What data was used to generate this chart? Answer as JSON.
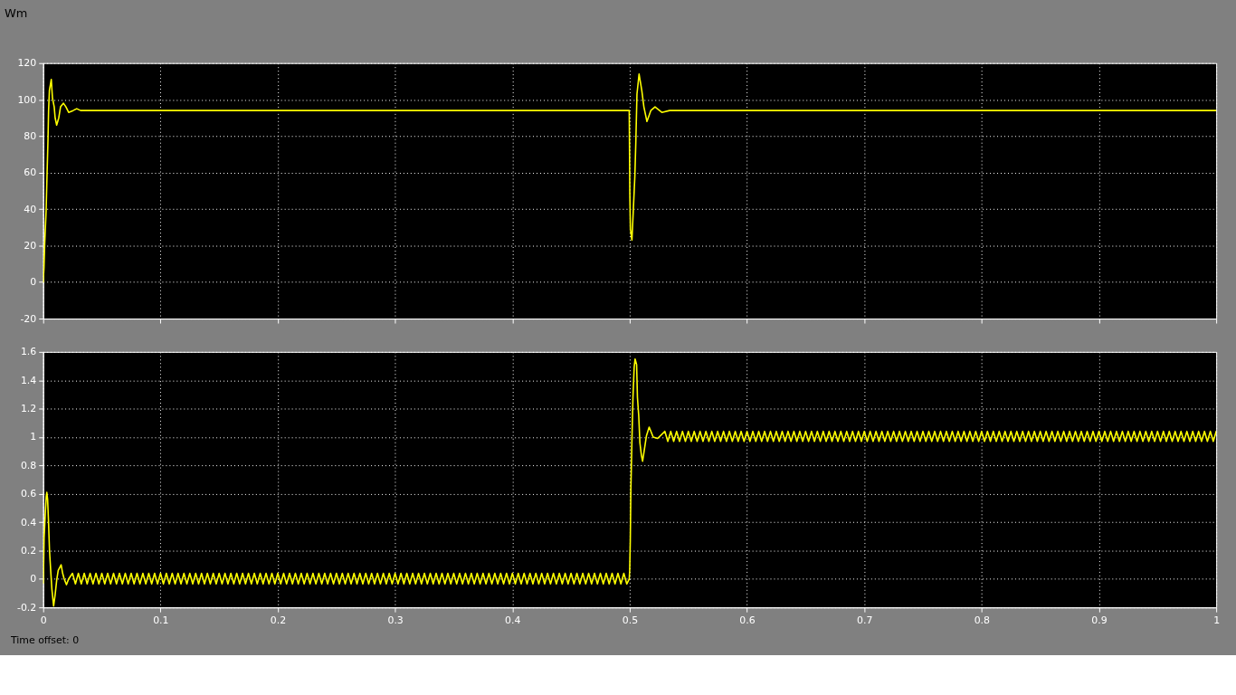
{
  "chart_data": [
    {
      "type": "line",
      "title": "Wm",
      "x": [
        0,
        0.0007,
        0.0013,
        0.0025,
        0.0033,
        0.0041,
        0.0046,
        0.0053,
        0.0069,
        0.0079,
        0.0094,
        0.0102,
        0.0115,
        0.0133,
        0.0148,
        0.0173,
        0.0194,
        0.0217,
        0.0255,
        0.0286,
        0.0319,
        0.0383,
        0.05,
        0.1,
        0.15,
        0.2,
        0.25,
        0.3,
        0.35,
        0.4,
        0.45,
        0.4996,
        0.4998,
        0.5001,
        0.5006,
        0.5019,
        0.5032,
        0.5044,
        0.5052,
        0.5062,
        0.508,
        0.5103,
        0.5121,
        0.5147,
        0.518,
        0.5216,
        0.5274,
        0.534,
        0.6,
        0.7,
        0.8,
        0.9,
        1
      ],
      "series": [
        {
          "color": "#ffff00",
          "values": [
            0,
            8,
            21,
            39,
            59,
            78,
            94,
            105,
            111,
            101,
            96,
            90,
            86,
            90,
            96,
            98,
            96,
            93,
            94,
            95,
            94,
            94,
            94,
            94,
            94,
            94,
            94,
            94,
            94,
            94,
            94,
            94,
            77,
            49,
            29,
            23,
            41,
            58,
            76,
            103,
            114,
            105,
            96,
            88,
            94,
            96,
            93,
            94,
            94,
            94,
            94,
            94,
            94
          ]
        }
      ],
      "xlim": [
        0,
        1
      ],
      "xticks": [
        0,
        0.1,
        0.2,
        0.3,
        0.4,
        0.5,
        0.6,
        0.7,
        0.8,
        0.9,
        1
      ],
      "ylim": [
        -20,
        120
      ],
      "yticks": [
        -20,
        0,
        20,
        40,
        60,
        80,
        100,
        120
      ],
      "grid": true,
      "tick_labels": "y"
    },
    {
      "type": "line",
      "x": [
        0,
        0.0004,
        0.0008,
        0.0018,
        0.0026,
        0.0031,
        0.0038,
        0.0046,
        0.0054,
        0.0064,
        0.0074,
        0.0089,
        0.0102,
        0.0115,
        0.0128,
        0.0153,
        0.0166,
        0.0179,
        0.0199,
        0.0217,
        0.025,
        0.0275,
        0.03,
        0.0325,
        0.035,
        0.0375,
        0.04,
        0.0425,
        0.045,
        0.0475,
        0.05,
        0.0525,
        0.055,
        0.0575,
        0.06,
        0.0625,
        0.065,
        0.0675,
        0.07,
        0.0725,
        0.075,
        0.0775,
        0.08,
        0.0825,
        0.085,
        0.0875,
        0.09,
        0.0925,
        0.095,
        0.0975,
        0.1,
        0.1025,
        0.105,
        0.1075,
        0.11,
        0.1125,
        0.115,
        0.1175,
        0.12,
        0.1225,
        0.125,
        0.1275,
        0.13,
        0.1325,
        0.135,
        0.1375,
        0.14,
        0.1425,
        0.145,
        0.1475,
        0.15,
        0.1525,
        0.155,
        0.1575,
        0.16,
        0.1625,
        0.165,
        0.1675,
        0.17,
        0.1725,
        0.175,
        0.1775,
        0.18,
        0.1825,
        0.185,
        0.1875,
        0.19,
        0.1925,
        0.195,
        0.1975,
        0.2,
        0.2025,
        0.205,
        0.2075,
        0.21,
        0.2125,
        0.215,
        0.2175,
        0.22,
        0.2225,
        0.225,
        0.2275,
        0.23,
        0.2325,
        0.235,
        0.2375,
        0.24,
        0.2425,
        0.245,
        0.2475,
        0.25,
        0.2525,
        0.255,
        0.2575,
        0.26,
        0.2625,
        0.265,
        0.2675,
        0.27,
        0.2725,
        0.275,
        0.2775,
        0.28,
        0.2825,
        0.285,
        0.2875,
        0.29,
        0.2925,
        0.295,
        0.2975,
        0.3,
        0.3025,
        0.305,
        0.3075,
        0.31,
        0.3125,
        0.315,
        0.3175,
        0.32,
        0.3225,
        0.325,
        0.3275,
        0.33,
        0.3325,
        0.335,
        0.3375,
        0.34,
        0.3425,
        0.345,
        0.3475,
        0.35,
        0.3525,
        0.355,
        0.3575,
        0.36,
        0.3625,
        0.365,
        0.3675,
        0.37,
        0.3725,
        0.375,
        0.3775,
        0.38,
        0.3825,
        0.385,
        0.3875,
        0.39,
        0.3925,
        0.395,
        0.3975,
        0.4,
        0.4025,
        0.405,
        0.4075,
        0.41,
        0.4125,
        0.415,
        0.4175,
        0.42,
        0.4225,
        0.425,
        0.4275,
        0.43,
        0.4325,
        0.435,
        0.4375,
        0.44,
        0.4425,
        0.445,
        0.4475,
        0.45,
        0.4525,
        0.455,
        0.4575,
        0.46,
        0.4625,
        0.465,
        0.4675,
        0.47,
        0.4725,
        0.475,
        0.4775,
        0.48,
        0.4825,
        0.485,
        0.4875,
        0.49,
        0.4925,
        0.495,
        0.4975,
        0.4996,
        0.5,
        0.5005,
        0.501,
        0.502,
        0.5028,
        0.5038,
        0.5046,
        0.5059,
        0.5066,
        0.5077,
        0.5087,
        0.51,
        0.511,
        0.5123,
        0.5143,
        0.5166,
        0.5181,
        0.52,
        0.5238,
        0.53,
        0.5325,
        0.535,
        0.5375,
        0.54,
        0.5425,
        0.545,
        0.5475,
        0.55,
        0.5525,
        0.555,
        0.5575,
        0.56,
        0.5625,
        0.565,
        0.5675,
        0.57,
        0.5725,
        0.575,
        0.5775,
        0.58,
        0.5825,
        0.585,
        0.5875,
        0.59,
        0.5925,
        0.595,
        0.5975,
        0.6,
        0.6025,
        0.605,
        0.6075,
        0.61,
        0.6125,
        0.615,
        0.6175,
        0.62,
        0.6225,
        0.625,
        0.6275,
        0.63,
        0.6325,
        0.635,
        0.6375,
        0.64,
        0.6425,
        0.645,
        0.6475,
        0.65,
        0.6525,
        0.655,
        0.6575,
        0.66,
        0.6625,
        0.665,
        0.6675,
        0.67,
        0.6725,
        0.675,
        0.6775,
        0.68,
        0.6825,
        0.685,
        0.6875,
        0.69,
        0.6925,
        0.695,
        0.6975,
        0.7,
        0.7025,
        0.705,
        0.7075,
        0.71,
        0.7125,
        0.715,
        0.7175,
        0.72,
        0.7225,
        0.725,
        0.7275,
        0.73,
        0.7325,
        0.735,
        0.7375,
        0.74,
        0.7425,
        0.745,
        0.7475,
        0.75,
        0.7525,
        0.755,
        0.7575,
        0.76,
        0.7625,
        0.765,
        0.7675,
        0.77,
        0.7725,
        0.775,
        0.7775,
        0.78,
        0.7825,
        0.785,
        0.7875,
        0.79,
        0.7925,
        0.795,
        0.7975,
        0.8,
        0.8025,
        0.805,
        0.8075,
        0.81,
        0.8125,
        0.815,
        0.8175,
        0.82,
        0.8225,
        0.825,
        0.8275,
        0.83,
        0.8325,
        0.835,
        0.8375,
        0.84,
        0.8425,
        0.845,
        0.8475,
        0.85,
        0.8525,
        0.855,
        0.8575,
        0.86,
        0.8625,
        0.865,
        0.8675,
        0.87,
        0.8725,
        0.875,
        0.8775,
        0.88,
        0.8825,
        0.885,
        0.8875,
        0.89,
        0.8925,
        0.895,
        0.8975,
        0.9,
        0.9025,
        0.905,
        0.9075,
        0.91,
        0.9125,
        0.915,
        0.9175,
        0.92,
        0.9225,
        0.925,
        0.9275,
        0.93,
        0.9325,
        0.935,
        0.9375,
        0.94,
        0.9425,
        0.945,
        0.9475,
        0.95,
        0.9525,
        0.955,
        0.9575,
        0.96,
        0.9625,
        0.965,
        0.9675,
        0.97,
        0.9725,
        0.975,
        0.9775,
        0.98,
        0.9825,
        0.985,
        0.9875,
        0.99,
        0.9925,
        0.995,
        0.9975,
        1
      ],
      "series": [
        {
          "color": "#ffff00",
          "values": [
            -0.03,
            0.1,
            0.29,
            0.46,
            0.58,
            0.61,
            0.56,
            0.39,
            0.2,
            0.06,
            -0.07,
            -0.19,
            -0.11,
            -0.01,
            0.06,
            0.1,
            0.04,
            0,
            -0.04,
            0,
            0.04,
            -0.035,
            0.04,
            -0.035,
            0.04,
            -0.035,
            0.04,
            -0.035,
            0.04,
            -0.035,
            0.04,
            -0.035,
            0.04,
            -0.035,
            0.04,
            -0.035,
            0.04,
            -0.035,
            0.04,
            -0.035,
            0.04,
            -0.035,
            0.04,
            -0.035,
            0.04,
            -0.035,
            0.04,
            -0.035,
            0.04,
            -0.035,
            0.04,
            -0.035,
            0.04,
            -0.035,
            0.04,
            -0.035,
            0.04,
            -0.035,
            0.04,
            -0.035,
            0.04,
            -0.035,
            0.04,
            -0.035,
            0.04,
            -0.035,
            0.04,
            -0.035,
            0.04,
            -0.035,
            0.04,
            -0.035,
            0.04,
            -0.035,
            0.04,
            -0.035,
            0.04,
            -0.035,
            0.04,
            -0.035,
            0.04,
            -0.035,
            0.04,
            -0.035,
            0.04,
            -0.035,
            0.04,
            -0.035,
            0.04,
            -0.035,
            0.04,
            -0.035,
            0.04,
            -0.035,
            0.04,
            -0.035,
            0.04,
            -0.035,
            0.04,
            -0.035,
            0.04,
            -0.035,
            0.04,
            -0.035,
            0.04,
            -0.035,
            0.04,
            -0.035,
            0.04,
            -0.035,
            0.04,
            -0.035,
            0.04,
            -0.035,
            0.04,
            -0.035,
            0.04,
            -0.035,
            0.04,
            -0.035,
            0.04,
            -0.035,
            0.04,
            -0.035,
            0.04,
            -0.035,
            0.04,
            -0.035,
            0.04,
            -0.035,
            0.04,
            -0.035,
            0.04,
            -0.035,
            0.04,
            -0.035,
            0.04,
            -0.035,
            0.04,
            -0.035,
            0.04,
            -0.035,
            0.04,
            -0.035,
            0.04,
            -0.035,
            0.04,
            -0.035,
            0.04,
            -0.035,
            0.04,
            -0.035,
            0.04,
            -0.035,
            0.04,
            -0.035,
            0.04,
            -0.035,
            0.04,
            -0.035,
            0.04,
            -0.035,
            0.04,
            -0.035,
            0.04,
            -0.035,
            0.04,
            -0.035,
            0.04,
            -0.035,
            0.04,
            -0.035,
            0.04,
            -0.035,
            0.04,
            -0.035,
            0.04,
            -0.035,
            0.04,
            -0.035,
            0.04,
            -0.035,
            0.04,
            -0.035,
            0.04,
            -0.035,
            0.04,
            -0.035,
            0.04,
            -0.035,
            0.04,
            -0.035,
            0.04,
            -0.035,
            0.04,
            -0.035,
            0.04,
            -0.035,
            0.04,
            -0.035,
            0.04,
            -0.035,
            0.04,
            -0.035,
            0.04,
            -0.035,
            0.04,
            -0.035,
            0.04,
            -0.035,
            0,
            0.06,
            0.27,
            0.63,
            1.01,
            1.28,
            1.49,
            1.55,
            1.51,
            1.28,
            1.15,
            0.96,
            0.87,
            0.83,
            0.9,
            1.01,
            1.07,
            1.04,
            1,
            0.99,
            1.04,
            0.97,
            1.04,
            0.97,
            1.04,
            0.97,
            1.04,
            0.97,
            1.04,
            0.97,
            1.04,
            0.97,
            1.04,
            0.97,
            1.04,
            0.97,
            1.04,
            0.97,
            1.04,
            0.97,
            1.04,
            0.97,
            1.04,
            0.97,
            1.04,
            0.97,
            1.04,
            0.97,
            1.04,
            0.97,
            1.04,
            0.97,
            1.04,
            0.97,
            1.04,
            0.97,
            1.04,
            0.97,
            1.04,
            0.97,
            1.04,
            0.97,
            1.04,
            0.97,
            1.04,
            0.97,
            1.04,
            0.97,
            1.04,
            0.97,
            1.04,
            0.97,
            1.04,
            0.97,
            1.04,
            0.97,
            1.04,
            0.97,
            1.04,
            0.97,
            1.04,
            0.97,
            1.04,
            0.97,
            1.04,
            0.97,
            1.04,
            0.97,
            1.04,
            0.97,
            1.04,
            0.97,
            1.04,
            0.97,
            1.04,
            0.97,
            1.04,
            0.97,
            1.04,
            0.97,
            1.04,
            0.97,
            1.04,
            0.97,
            1.04,
            0.97,
            1.04,
            0.97,
            1.04,
            0.97,
            1.04,
            0.97,
            1.04,
            0.97,
            1.04,
            0.97,
            1.04,
            0.97,
            1.04,
            0.97,
            1.04,
            0.97,
            1.04,
            0.97,
            1.04,
            0.97,
            1.04,
            0.97,
            1.04,
            0.97,
            1.04,
            0.97,
            1.04,
            0.97,
            1.04,
            0.97,
            1.04,
            0.97,
            1.04,
            0.97,
            1.04,
            0.97,
            1.04,
            0.97,
            1.04,
            0.97,
            1.04,
            0.97,
            1.04,
            0.97,
            1.04,
            0.97,
            1.04,
            0.97,
            1.04,
            0.97,
            1.04,
            0.97,
            1.04,
            0.97,
            1.04,
            0.97,
            1.04,
            0.97,
            1.04,
            0.97,
            1.04,
            0.97,
            1.04,
            0.97,
            1.04,
            0.97,
            1.04,
            0.97,
            1.04,
            0.97,
            1.04,
            0.97,
            1.04,
            0.97,
            1.04,
            0.97,
            1.04,
            0.97,
            1.04,
            0.97,
            1.04,
            0.97,
            1.04,
            0.97,
            1.04,
            0.97,
            1.04,
            0.97,
            1.04,
            0.97,
            1.04,
            0.97,
            1.04,
            0.97,
            1.04,
            0.97,
            1.04,
            0.97,
            1.04,
            0.97,
            1.04,
            0.97,
            1.04
          ]
        }
      ],
      "xlim": [
        0,
        1
      ],
      "xticks": [
        0,
        0.1,
        0.2,
        0.3,
        0.4,
        0.5,
        0.6,
        0.7,
        0.8,
        0.9,
        1
      ],
      "ylim": [
        -0.2,
        1.6
      ],
      "yticks": [
        -0.2,
        0,
        0.2,
        0.4,
        0.6,
        0.8,
        1,
        1.2,
        1.4,
        1.6
      ],
      "grid": true,
      "annotations": [
        "Time offset: 0"
      ]
    }
  ]
}
